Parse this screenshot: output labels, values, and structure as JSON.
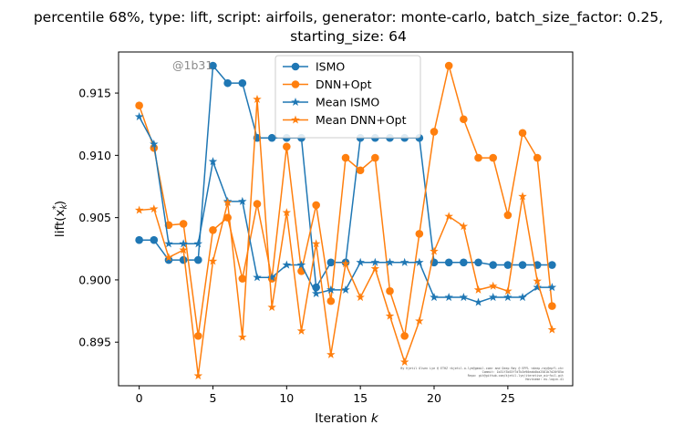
{
  "chart_data": {
    "type": "line",
    "title_line1": "percentile 68%, type: lift, script: airfoils, generator: monte-carlo, batch_size_factor: 0.25,",
    "title_line2": "starting_size: 64",
    "xlabel": "Iteration",
    "xlabel_var": "k",
    "ylabel_main": "lift(x",
    "ylabel_sub": "k",
    "ylabel_sup": "*",
    "ylabel_close": ")",
    "xlim": [
      -1.4,
      29.4
    ],
    "ylim": [
      0.8915,
      0.9183
    ],
    "xticks": [
      0,
      5,
      10,
      15,
      20,
      25
    ],
    "yticks": [
      0.895,
      0.9,
      0.905,
      0.91,
      0.915
    ],
    "ytick_labels": [
      "0.895",
      "0.900",
      "0.905",
      "0.910",
      "0.915"
    ],
    "watermark": "@1b31",
    "credit_lines": [
      "By Kjetil Olsen Lye @ ETHZ <kjetil.o.lye@gmail.com> and Deep Ray @ EPFL <deep.ray@epfl.ch>",
      "Commit: 1b31f3b53f7d7b3e90eab0ba2581b7d20f85a",
      "Repo: git@github.com/kjetil-lye/iterative_airfoil.git",
      "Hostname: eu-login-41"
    ],
    "legend_position": "upper-center",
    "grid": false,
    "series": [
      {
        "name": "ISMO",
        "color": "#1f77b4",
        "marker": "circle",
        "x": [
          0,
          1,
          2,
          3,
          4,
          5,
          6,
          7,
          8,
          9,
          10,
          11,
          12,
          13,
          14,
          15,
          16,
          17,
          18,
          19,
          20,
          21,
          22,
          23,
          24,
          25,
          26,
          27,
          28
        ],
        "values": [
          0.9032,
          0.9032,
          0.9016,
          0.9016,
          0.9016,
          0.9172,
          0.9158,
          0.9158,
          0.9114,
          0.9114,
          0.9114,
          0.9114,
          0.8994,
          0.9014,
          0.9014,
          0.9114,
          0.9114,
          0.9114,
          0.9114,
          0.9114,
          0.9014,
          0.9014,
          0.9014,
          0.9014,
          0.9012,
          0.9012,
          0.9012,
          0.9012,
          0.9012
        ]
      },
      {
        "name": "DNN+Opt",
        "color": "#ff7f0e",
        "marker": "circle",
        "x": [
          0,
          1,
          2,
          3,
          4,
          5,
          6,
          7,
          8,
          9,
          10,
          11,
          12,
          13,
          14,
          15,
          16,
          17,
          18,
          19,
          20,
          21,
          22,
          23,
          24,
          25,
          26,
          27,
          28
        ],
        "values": [
          0.914,
          0.9106,
          0.9044,
          0.9045,
          0.8955,
          0.904,
          0.905,
          0.9001,
          0.9061,
          0.9001,
          0.9107,
          0.9007,
          0.906,
          0.8983,
          0.9098,
          0.9088,
          0.9098,
          0.8991,
          0.8955,
          0.9037,
          0.9119,
          0.9172,
          0.9129,
          0.9098,
          0.9098,
          0.9052,
          0.9118,
          0.9098,
          0.8979
        ]
      },
      {
        "name": "Mean ISMO",
        "color": "#1f77b4",
        "marker": "star",
        "x": [
          0,
          1,
          2,
          3,
          4,
          5,
          6,
          7,
          8,
          9,
          10,
          11,
          12,
          13,
          14,
          15,
          16,
          17,
          18,
          19,
          20,
          21,
          22,
          23,
          24,
          25,
          26,
          27,
          28
        ],
        "values": [
          0.9131,
          0.9109,
          0.9029,
          0.9029,
          0.9029,
          0.9095,
          0.9063,
          0.9063,
          0.9002,
          0.9002,
          0.9012,
          0.9012,
          0.8989,
          0.8992,
          0.8992,
          0.9014,
          0.9014,
          0.9014,
          0.9014,
          0.9014,
          0.8986,
          0.8986,
          0.8986,
          0.8982,
          0.8986,
          0.8986,
          0.8986,
          0.8994,
          0.8994
        ]
      },
      {
        "name": "Mean DNN+Opt",
        "color": "#ff7f0e",
        "marker": "star",
        "x": [
          0,
          1,
          2,
          3,
          4,
          5,
          6,
          7,
          8,
          9,
          10,
          11,
          12,
          13,
          14,
          15,
          16,
          17,
          18,
          19,
          20,
          21,
          22,
          23,
          24,
          25,
          26,
          27,
          28
        ],
        "values": [
          0.9056,
          0.9057,
          0.9018,
          0.9024,
          0.8923,
          0.9015,
          0.9062,
          0.8954,
          0.9145,
          0.8978,
          0.9054,
          0.8959,
          0.9029,
          0.894,
          0.9013,
          0.8986,
          0.9009,
          0.8971,
          0.8934,
          0.8967,
          0.9023,
          0.9051,
          0.9043,
          0.8992,
          0.8995,
          0.8991,
          0.9067,
          0.8999,
          0.896
        ]
      }
    ]
  }
}
